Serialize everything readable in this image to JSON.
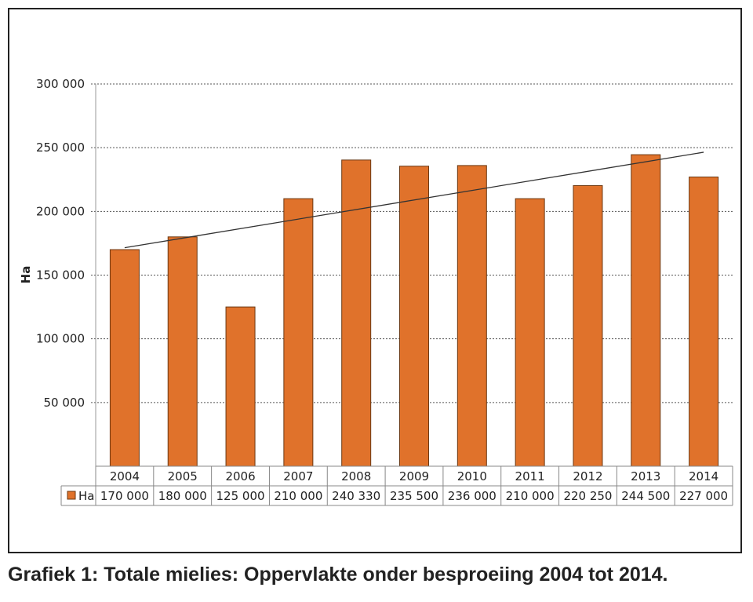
{
  "caption": "Grafiek 1: Totale mielies: Oppervlakte onder besproeiing 2004 tot 2014.",
  "chart_data": {
    "type": "bar",
    "title": "",
    "xlabel": "",
    "ylabel": "Ha",
    "ylim": [
      0,
      300000
    ],
    "yticks": [
      50000,
      100000,
      150000,
      200000,
      250000,
      300000
    ],
    "ytick_labels": [
      "50 000",
      "100 000",
      "150 000",
      "200 000",
      "250 000",
      "300 000"
    ],
    "grid": true,
    "trendline": true,
    "categories": [
      "2004",
      "2005",
      "2006",
      "2007",
      "2008",
      "2009",
      "2010",
      "2011",
      "2012",
      "2013",
      "2014"
    ],
    "series": [
      {
        "name": "Ha",
        "values": [
          170000,
          180000,
          125000,
          210000,
          240330,
          235500,
          236000,
          210000,
          220250,
          244500,
          227000
        ],
        "value_labels": [
          "170 000",
          "180 000",
          "125 000",
          "210 000",
          "240 330",
          "235 500",
          "236 000",
          "210 000",
          "220 250",
          "244 500",
          "227 000"
        ],
        "color": "#e0722b"
      }
    ],
    "data_table": true
  }
}
